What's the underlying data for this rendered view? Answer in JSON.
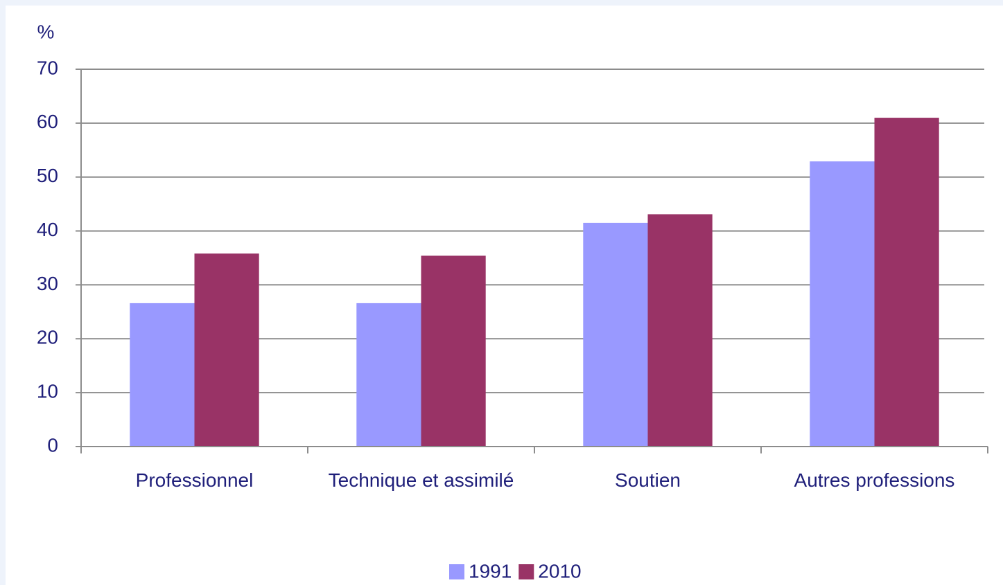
{
  "chart_data": {
    "type": "bar",
    "y_label": "%",
    "categories": [
      "Professionnel",
      "Technique et assimilé",
      "Soutien",
      "Autres professions"
    ],
    "series": [
      {
        "name": "1991",
        "color": "#9999ff",
        "values": [
          26.6,
          26.6,
          41.5,
          52.9
        ]
      },
      {
        "name": "2010",
        "color": "#993366",
        "values": [
          35.8,
          35.4,
          43.1,
          61.0
        ]
      }
    ],
    "ylim": [
      0,
      70
    ],
    "yticks": [
      0,
      10,
      20,
      30,
      40,
      50,
      60,
      70
    ],
    "grid": true,
    "legend": "bottom"
  }
}
